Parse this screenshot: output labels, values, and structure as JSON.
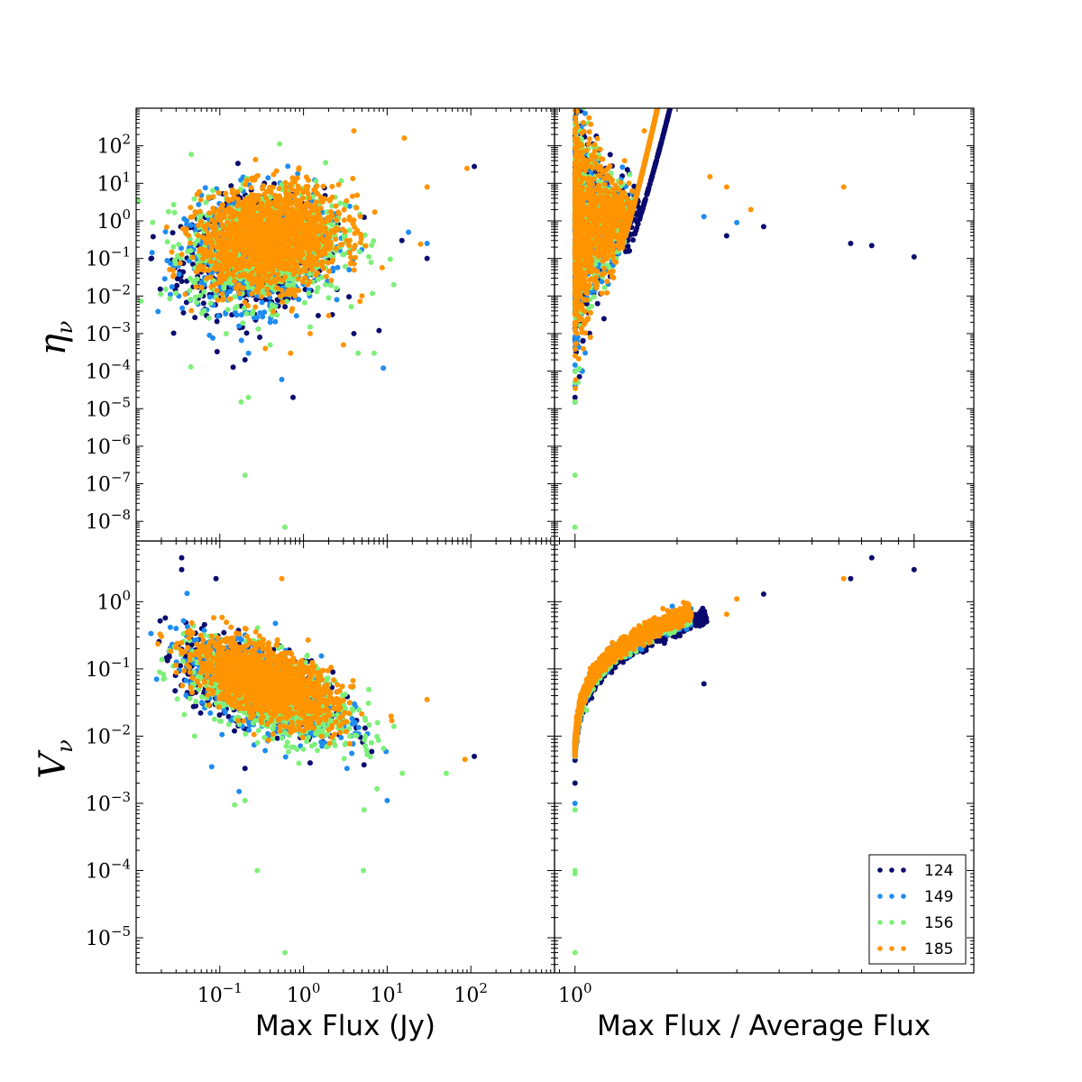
{
  "chart_data": [
    {
      "type": "scatter",
      "panel": "top-left",
      "xscale": "log",
      "yscale": "log",
      "xlim": [
        0.01,
        1000
      ],
      "ylim": [
        3e-09,
        1000
      ],
      "xlabel": "",
      "ylabel": "η",
      "ylabel_sub": "ν",
      "yticks": [
        {
          "base": "10",
          "exp": "2"
        },
        {
          "base": "10",
          "exp": "1"
        },
        {
          "base": "10",
          "exp": "0"
        },
        {
          "base": "10",
          "exp": "−1"
        },
        {
          "base": "10",
          "exp": "−2"
        },
        {
          "base": "10",
          "exp": "−3"
        },
        {
          "base": "10",
          "exp": "−4"
        },
        {
          "base": "10",
          "exp": "−5"
        },
        {
          "base": "10",
          "exp": "−6"
        },
        {
          "base": "10",
          "exp": "−7"
        },
        {
          "base": "10",
          "exp": "−8"
        }
      ],
      "ytick_values": [
        100,
        10,
        1,
        0.1,
        0.01,
        0.001,
        0.0001,
        1e-05,
        1e-06,
        1e-07,
        1e-08
      ],
      "series": [
        {
          "name": "124",
          "points": [
            [
              0.055,
              0.22
            ],
            [
              0.07,
              0.1
            ],
            [
              0.6,
              0.03
            ],
            [
              0.75,
              2e-05
            ],
            [
              0.3,
              0.0008
            ],
            [
              4,
              0.001
            ],
            [
              8,
              0.0012
            ],
            [
              15,
              0.3
            ],
            [
              30,
              0.1
            ],
            [
              110,
              28
            ],
            [
              1.5,
              0.003
            ],
            [
              0.2,
              0.0002
            ]
          ]
        },
        {
          "name": "149",
          "points": [
            [
              0.065,
              0.02
            ],
            [
              0.08,
              0.06
            ],
            [
              0.55,
              6e-05
            ],
            [
              0.22,
              0.0003
            ],
            [
              9,
              0.00012
            ],
            [
              18,
              0.5
            ],
            [
              30,
              0.25
            ],
            [
              0.4,
              0.002
            ],
            [
              2.5,
              0.008
            ]
          ]
        },
        {
          "name": "156",
          "points": [
            [
              0.03,
              0.012
            ],
            [
              0.045,
              0.00013
            ],
            [
              0.18,
              1.5e-05
            ],
            [
              0.2,
              1.7e-07
            ],
            [
              0.6,
              7e-09
            ],
            [
              0.22,
              2e-05
            ],
            [
              0.4,
              0.0005
            ],
            [
              4.5,
              0.0003
            ],
            [
              7,
              0.0003
            ],
            [
              1.2,
              0.0015
            ],
            [
              12,
              0.02
            ]
          ]
        },
        {
          "name": "185",
          "points": [
            [
              4,
              250
            ],
            [
              16,
              160
            ],
            [
              90,
              25
            ],
            [
              30,
              8
            ],
            [
              1.2,
              0.001
            ],
            [
              0.7,
              0.0003
            ],
            [
              3,
              0.0005
            ],
            [
              5,
              0.01
            ],
            [
              0.35,
              0.0004
            ],
            [
              2,
              0.003
            ]
          ]
        }
      ],
      "clusters": [
        {
          "series": "124",
          "cx_log": -0.6,
          "cy_log": -0.85,
          "sx": 0.42,
          "sy": 0.75,
          "n": 700
        },
        {
          "series": "149",
          "cx_log": -0.55,
          "cy_log": -0.8,
          "sx": 0.42,
          "sy": 0.75,
          "n": 700
        },
        {
          "series": "156",
          "cx_log": -0.45,
          "cy_log": -0.65,
          "sx": 0.45,
          "sy": 0.75,
          "n": 900
        },
        {
          "series": "185",
          "cx_log": -0.4,
          "cy_log": -0.45,
          "sx": 0.42,
          "sy": 0.65,
          "n": 1500
        }
      ]
    },
    {
      "type": "scatter",
      "panel": "top-right",
      "xscale": "log",
      "yscale": "log",
      "xlim": [
        0.87,
        15
      ],
      "ylim": [
        3e-09,
        1000
      ],
      "series": [
        {
          "name": "124",
          "points": [
            [
              3.6,
              0.7
            ],
            [
              6.5,
              0.25
            ],
            [
              7.5,
              0.22
            ],
            [
              10,
              0.11
            ],
            [
              1,
              2e-05
            ],
            [
              1,
              1.5e-05
            ],
            [
              2.8,
              0.4
            ]
          ]
        },
        {
          "name": "149",
          "points": [
            [
              3,
              0.9
            ],
            [
              2.4,
              1.3
            ],
            [
              1,
              0.0001
            ],
            [
              1,
              4e-05
            ]
          ]
        },
        {
          "name": "156",
          "points": [
            [
              1,
              1.7e-07
            ],
            [
              1,
              7e-09
            ],
            [
              1,
              1.5e-05
            ],
            [
              1,
              5e-05
            ]
          ]
        },
        {
          "name": "185",
          "points": [
            [
              1.6,
              250
            ],
            [
              1.0,
              160
            ],
            [
              6.2,
              8
            ],
            [
              3.3,
              2
            ],
            [
              2.5,
              15
            ],
            [
              2.8,
              8
            ],
            [
              1.4,
              40
            ]
          ]
        }
      ],
      "clusters": []
    },
    {
      "type": "scatter",
      "panel": "bottom-left",
      "xscale": "log",
      "yscale": "log",
      "xlim": [
        0.01,
        1000
      ],
      "ylim": [
        3e-06,
        8
      ],
      "xlabel": "Max Flux (Jy)",
      "ylabel": "V",
      "ylabel_sub": "ν",
      "yticks": [
        {
          "base": "10",
          "exp": "0"
        },
        {
          "base": "10",
          "exp": "−1"
        },
        {
          "base": "10",
          "exp": "−2"
        },
        {
          "base": "10",
          "exp": "−3"
        },
        {
          "base": "10",
          "exp": "−4"
        },
        {
          "base": "10",
          "exp": "−5"
        }
      ],
      "ytick_values": [
        1,
        0.1,
        0.01,
        0.001,
        0.0001,
        1e-05
      ],
      "xticks": [
        {
          "base": "10",
          "exp": "−1"
        },
        {
          "base": "10",
          "exp": "0"
        },
        {
          "base": "10",
          "exp": "1"
        },
        {
          "base": "10",
          "exp": "2"
        }
      ],
      "xtick_values": [
        0.1,
        1,
        10,
        100
      ],
      "series": [
        {
          "name": "124",
          "points": [
            [
              0.035,
              4.5
            ],
            [
              0.035,
              3
            ],
            [
              0.09,
              2.2
            ],
            [
              0.045,
              0.06
            ],
            [
              0.2,
              0.0033
            ],
            [
              110,
              0.005
            ],
            [
              1.2,
              0.004
            ]
          ]
        },
        {
          "name": "149",
          "points": [
            [
              0.03,
              0.4
            ],
            [
              0.17,
              0.0015
            ],
            [
              10,
              0.0011
            ],
            [
              0.08,
              0.0035
            ]
          ]
        },
        {
          "name": "156",
          "points": [
            [
              0.025,
              0.19
            ],
            [
              0.05,
              0.01
            ],
            [
              0.15,
              0.00095
            ],
            [
              0.2,
              0.0011
            ],
            [
              0.28,
              0.0001
            ],
            [
              5.2,
              0.0001
            ],
            [
              0.6,
              6e-06
            ],
            [
              5.3,
              0.0008
            ]
          ]
        },
        {
          "name": "185",
          "points": [
            [
              0.55,
              2.2
            ],
            [
              85,
              0.0045
            ],
            [
              30,
              0.035
            ],
            [
              0.2,
              0.4
            ]
          ]
        }
      ],
      "clusters": [
        {
          "series": "124",
          "cx_log": -0.55,
          "cy_log": -1.25,
          "sx": 0.45,
          "sy": 0.35,
          "corr": -0.55,
          "n": 700
        },
        {
          "series": "149",
          "cx_log": -0.5,
          "cy_log": -1.3,
          "sx": 0.45,
          "sy": 0.35,
          "corr": -0.55,
          "n": 700
        },
        {
          "series": "156",
          "cx_log": -0.35,
          "cy_log": -1.4,
          "sx": 0.48,
          "sy": 0.35,
          "corr": -0.6,
          "n": 900
        },
        {
          "series": "185",
          "cx_log": -0.45,
          "cy_log": -1.2,
          "sx": 0.42,
          "sy": 0.3,
          "corr": -0.55,
          "n": 1500
        }
      ]
    },
    {
      "type": "scatter",
      "panel": "bottom-right",
      "xscale": "log",
      "yscale": "log",
      "xlim": [
        0.87,
        15
      ],
      "ylim": [
        3e-06,
        8
      ],
      "xlabel": "Max Flux / Average Flux",
      "xticks": [
        {
          "base": "10",
          "exp": "0"
        }
      ],
      "xtick_values": [
        1
      ],
      "series": [
        {
          "name": "124",
          "points": [
            [
              7.5,
              4.5
            ],
            [
              10,
              3
            ],
            [
              6.5,
              2.2
            ],
            [
              3.6,
              1.3
            ],
            [
              2.4,
              0.06
            ],
            [
              1,
              0.002
            ]
          ]
        },
        {
          "name": "149",
          "points": [
            [
              1,
              0.001
            ],
            [
              2.2,
              0.6
            ]
          ]
        },
        {
          "name": "156",
          "points": [
            [
              1,
              6e-06
            ],
            [
              1,
              0.0001
            ],
            [
              1,
              9e-05
            ],
            [
              1,
              0.0008
            ]
          ]
        },
        {
          "name": "185",
          "points": [
            [
              6.2,
              2.2
            ],
            [
              3.0,
              1.1
            ],
            [
              2.8,
              0.65
            ]
          ]
        }
      ],
      "clusters": []
    }
  ],
  "legend": {
    "placement": "bottom-right",
    "entries": [
      {
        "label": "124",
        "color": "#0a0a6e"
      },
      {
        "label": "149",
        "color": "#1e8cf0"
      },
      {
        "label": "156",
        "color": "#7ef07a"
      },
      {
        "label": "185",
        "color": "#ff9400"
      }
    ]
  },
  "colors": {
    "124": "#0a0a6e",
    "149": "#1e8cf0",
    "156": "#7ef07a",
    "185": "#ff9400"
  }
}
